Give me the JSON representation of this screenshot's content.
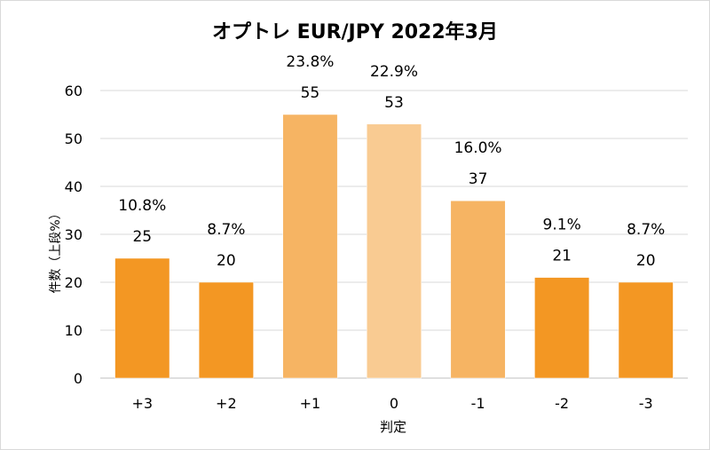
{
  "chart_data": {
    "type": "bar",
    "title": "オプトレ EUR/JPY 2022年3月",
    "xlabel": "判定",
    "ylabel": "件数（上段%）",
    "categories": [
      "+3",
      "+2",
      "+1",
      "0",
      "-1",
      "-2",
      "-3"
    ],
    "values": [
      25,
      20,
      55,
      53,
      37,
      21,
      20
    ],
    "percent_labels": [
      "10.8%",
      "8.7%",
      "23.8%",
      "22.9%",
      "16.0%",
      "9.1%",
      "8.7%"
    ],
    "bar_colors": [
      "#f39723",
      "#f39723",
      "#f6b463",
      "#f9cb92",
      "#f6b463",
      "#f39723",
      "#f39723"
    ],
    "ylim": [
      0,
      60
    ],
    "yticks": [
      0,
      10,
      20,
      30,
      40,
      50,
      60
    ],
    "grid": true,
    "legend": "none"
  }
}
